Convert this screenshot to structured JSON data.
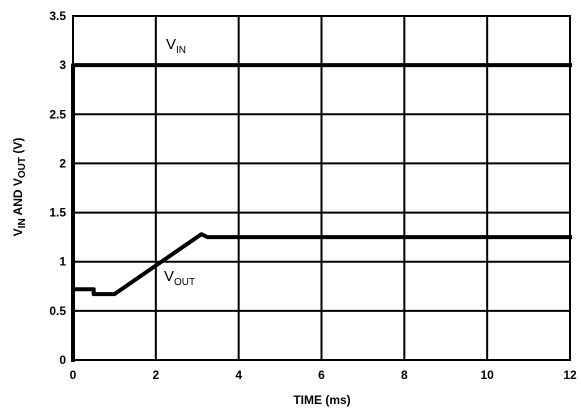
{
  "chart_data": {
    "type": "line",
    "xlabel": "TIME (ms)",
    "ylabel_parts": [
      "V",
      "IN",
      " AND V",
      "OUT",
      " (V)"
    ],
    "xlim": [
      0,
      12
    ],
    "ylim": [
      0,
      3.5
    ],
    "x_ticks": [
      "0",
      "2",
      "4",
      "6",
      "8",
      "10",
      "12"
    ],
    "y_ticks": [
      "0",
      "0.5",
      "1",
      "1.5",
      "2",
      "2.5",
      "3",
      "3.5"
    ],
    "grid": true,
    "series": [
      {
        "name": "VIN",
        "label_main": "V",
        "label_sub": "IN",
        "x": [
          0,
          0,
          12
        ],
        "y": [
          0,
          3,
          3
        ]
      },
      {
        "name": "VOUT",
        "label_main": "V",
        "label_sub": "OUT",
        "x": [
          0,
          0.5,
          0.5,
          1.0,
          3.1,
          3.25,
          12
        ],
        "y": [
          0.72,
          0.72,
          0.67,
          0.67,
          1.28,
          1.25,
          1.25
        ]
      }
    ]
  }
}
